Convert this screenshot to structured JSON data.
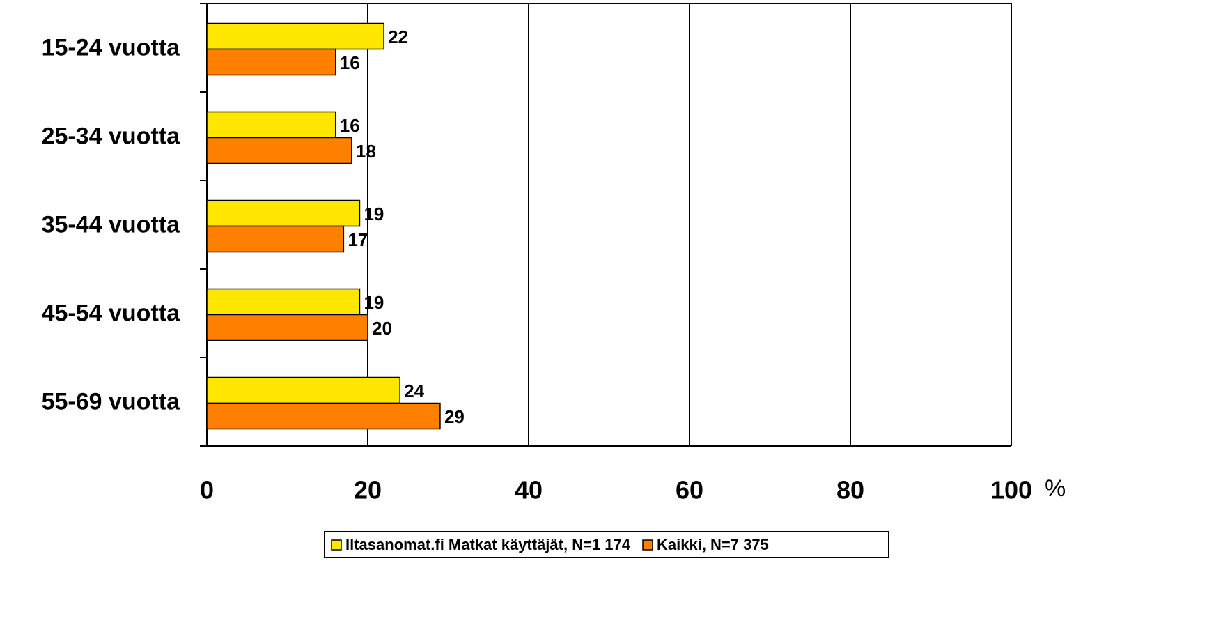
{
  "chart_data": {
    "type": "barh",
    "categories": [
      "15-24 vuotta",
      "25-34 vuotta",
      "35-44 vuotta",
      "45-54 vuotta",
      "55-69 vuotta"
    ],
    "series": [
      {
        "name": "Iltasanomat.fi Matkat käyttäjät, N=1 174",
        "color": "#ffe600",
        "values": [
          22,
          16,
          19,
          19,
          24
        ]
      },
      {
        "name": "Kaikki, N=7 375",
        "color": "#ff8000",
        "values": [
          16,
          18,
          17,
          20,
          29
        ]
      }
    ],
    "xlim": [
      0,
      100
    ],
    "xticks": [
      0,
      20,
      40,
      60,
      80,
      100
    ],
    "xlabel": "%",
    "grid": true,
    "legend": "bottom"
  }
}
